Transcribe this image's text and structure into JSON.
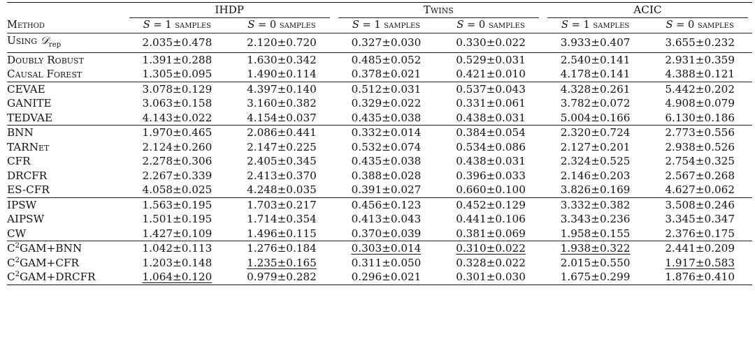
{
  "table": {
    "method_header": "Method",
    "datasets": [
      "IHDP",
      "Twins",
      "ACIC"
    ],
    "subheaders": [
      "S = 1 samples",
      "S = 0 samples",
      "S = 1 samples",
      "S = 0 samples",
      "S = 1 samples",
      "S = 0 samples"
    ],
    "rows": [
      {
        "method": "Using D_rep",
        "values": [
          "2.035±0.478",
          "2.120±0.720",
          "0.327±0.030",
          "0.330±0.022",
          "3.933±0.407",
          "3.655±0.232"
        ]
      },
      {
        "method": "Doubly Robust",
        "values": [
          "1.391±0.288",
          "1.630±0.342",
          "0.485±0.052",
          "0.529±0.031",
          "2.540±0.141",
          "2.931±0.359"
        ]
      },
      {
        "method": "Causal Forest",
        "values": [
          "1.305±0.095",
          "1.490±0.114",
          "0.378±0.021",
          "0.421±0.010",
          "4.178±0.141",
          "4.388±0.121"
        ]
      },
      {
        "method": "CEVAE",
        "values": [
          "3.078±0.129",
          "4.397±0.140",
          "0.512±0.031",
          "0.537±0.043",
          "4.328±0.261",
          "5.442±0.202"
        ]
      },
      {
        "method": "GANITE",
        "values": [
          "3.063±0.158",
          "3.160±0.382",
          "0.329±0.022",
          "0.331±0.061",
          "3.782±0.072",
          "4.908±0.079"
        ]
      },
      {
        "method": "TEDVAE",
        "values": [
          "4.143±0.022",
          "4.154±0.037",
          "0.435±0.038",
          "0.438±0.031",
          "5.004±0.166",
          "6.130±0.186"
        ]
      },
      {
        "method": "BNN",
        "values": [
          "1.970±0.465",
          "2.086±0.441",
          "0.332±0.014",
          "0.384±0.054",
          "2.320±0.724",
          "2.773±0.556"
        ]
      },
      {
        "method": "TARNet",
        "values": [
          "2.124±0.260",
          "2.147±0.225",
          "0.532±0.074",
          "0.534±0.086",
          "2.127±0.201",
          "2.938±0.526"
        ]
      },
      {
        "method": "CFR",
        "values": [
          "2.278±0.306",
          "2.405±0.345",
          "0.435±0.038",
          "0.438±0.031",
          "2.324±0.525",
          "2.754±0.325"
        ]
      },
      {
        "method": "DRCFR",
        "values": [
          "2.267±0.339",
          "2.413±0.370",
          "0.388±0.028",
          "0.396±0.033",
          "2.146±0.203",
          "2.567±0.268"
        ]
      },
      {
        "method": "ES-CFR",
        "values": [
          "4.058±0.025",
          "4.248±0.035",
          "0.391±0.027",
          "0.660±0.100",
          "3.826±0.169",
          "4.627±0.062"
        ]
      },
      {
        "method": "IPSW",
        "values": [
          "1.563±0.195",
          "1.703±0.217",
          "0.456±0.123",
          "0.452±0.129",
          "3.332±0.382",
          "3.508±0.246"
        ]
      },
      {
        "method": "AIPSW",
        "values": [
          "1.501±0.195",
          "1.714±0.354",
          "0.413±0.043",
          "0.441±0.106",
          "3.343±0.236",
          "3.345±0.347"
        ]
      },
      {
        "method": "CW",
        "values": [
          "1.427±0.109",
          "1.496±0.115",
          "0.370±0.039",
          "0.381±0.069",
          "1.958±0.155",
          "2.376±0.175"
        ]
      },
      {
        "method": "C2GAM+BNN",
        "values": [
          "1.042±0.113",
          "1.276±0.184",
          "0.303±0.014",
          "0.310±0.022",
          "1.938±0.322",
          "2.441±0.209"
        ]
      },
      {
        "method": "C2GAM+CFR",
        "values": [
          "1.203±0.148",
          "1.235±0.165",
          "0.311±0.050",
          "0.328±0.022",
          "2.015±0.550",
          "1.917±0.583"
        ]
      },
      {
        "method": "C2GAM+DRCFR",
        "values": [
          "1.064±0.120",
          "0.979±0.282",
          "0.296±0.021",
          "0.301±0.030",
          "1.675±0.299",
          "1.876±0.410"
        ]
      }
    ]
  }
}
